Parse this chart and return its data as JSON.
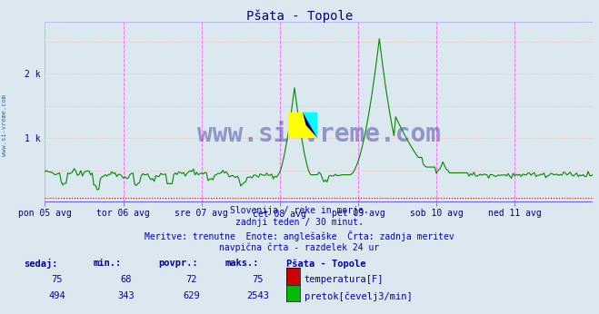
{
  "title": "Pšata - Topole",
  "bg_color": "#dce8f0",
  "plot_bg_color": "#dce8f0",
  "title_color": "#000080",
  "title_fontsize": 10,
  "vline_color": "#ff44ff",
  "temp_color": "#cc0000",
  "flow_color": "#008800",
  "xlim": [
    0,
    336
  ],
  "ylim": [
    0,
    2800
  ],
  "ytick_positions": [
    1000,
    2000
  ],
  "ytick_labels": [
    "1 k",
    "2 k"
  ],
  "xtick_positions": [
    0,
    48,
    96,
    144,
    192,
    240,
    288
  ],
  "xtick_labels": [
    "pon 05 avg",
    "tor 06 avg",
    "sre 07 avg",
    "čet 08 avg",
    "pet 09 avg",
    "sob 10 avg",
    "ned 11 avg"
  ],
  "vline_positions": [
    48,
    96,
    144,
    192,
    240,
    288,
    336
  ],
  "footer_lines": [
    "Slovenija / reke in morje.",
    "zadnji teden / 30 minut.",
    "Meritve: trenutne  Enote: anglešaške  Črta: zadnja meritev",
    "navpična črta - razdelek 24 ur"
  ],
  "footer_color": "#0000cc",
  "table_headers": [
    "sedaj:",
    "min.:",
    "povpr.:",
    "maks.:",
    "Pšata - Topole"
  ],
  "table_color": "#0000aa",
  "temp_value": 75,
  "temp_min": 68,
  "temp_avg": 72,
  "temp_max": 75,
  "flow_sedaj": 494,
  "flow_min": 343,
  "flow_avg": 629,
  "flow_max": 2543,
  "watermark": "www.si-vreme.com",
  "watermark_color": "#000080",
  "n_points": 337,
  "flow_baseline": 430,
  "temp_line_y": 75
}
